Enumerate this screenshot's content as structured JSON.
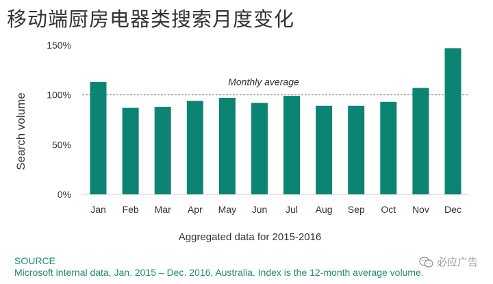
{
  "page": {
    "title": "移动端厨房电器类搜索月度变化",
    "source_label": "SOURCE",
    "source_text": "Microsoft internal data, Jan. 2015 – Dec. 2016, Australia. Index is the 12-month average volume.",
    "watermark": "必应广告",
    "watermark_icon": "wechat-icon"
  },
  "colors": {
    "bar": "#0b8471",
    "axis": "#cfcfcf",
    "reference": "#777777",
    "text": "#333333",
    "source": "#1f8a72"
  },
  "chart_data": {
    "type": "bar",
    "categories": [
      "Jan",
      "Feb",
      "Mar",
      "Apr",
      "May",
      "Jun",
      "Jul",
      "Aug",
      "Sep",
      "Oct",
      "Nov",
      "Dec"
    ],
    "values": [
      113,
      87,
      88,
      94,
      97,
      92,
      99,
      89,
      89,
      93,
      107,
      147
    ],
    "title": "",
    "xlabel": "Aggregated data for 2015-2016",
    "ylabel": "Search volume",
    "ylim": [
      0,
      150
    ],
    "yticks": [
      0,
      50,
      100,
      150
    ],
    "ytick_labels": [
      "0%",
      "50%",
      "100%",
      "150%"
    ],
    "reference_line": {
      "value": 100,
      "label": "Monthly average",
      "style": "dashed"
    },
    "grid": false,
    "legend": "none"
  }
}
